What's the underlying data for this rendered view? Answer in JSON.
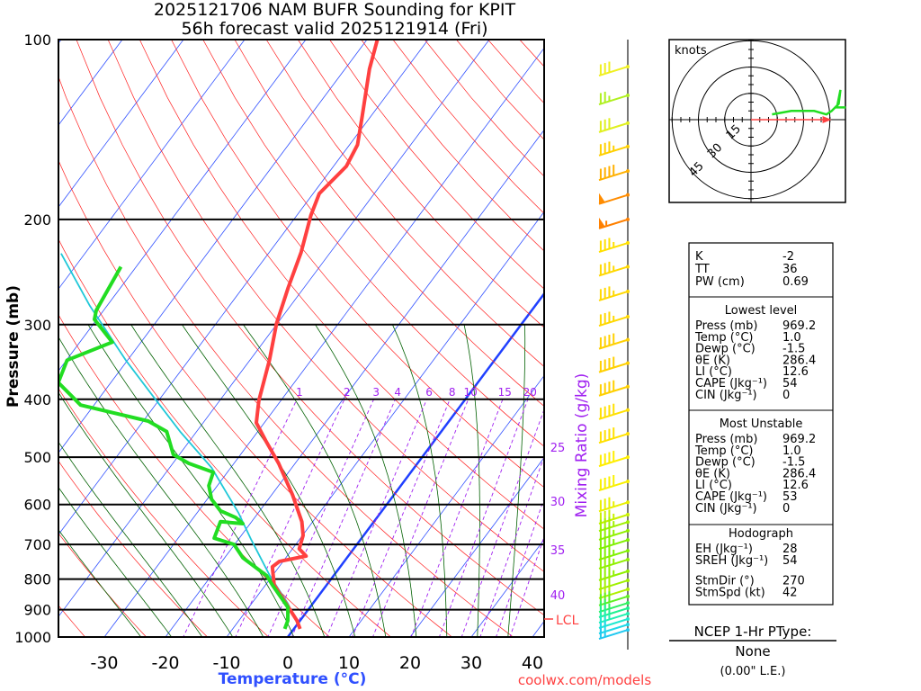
{
  "title": {
    "line1": "2025121706 NAM BUFR Sounding for KPIT",
    "line2": "56h forecast valid 2025121914 (Fri)"
  },
  "chart_data": {
    "type": "line",
    "subtype": "skew-T log-P",
    "xlabel": "Temperature (°C)",
    "ylabel": "Pressure (mb)",
    "right_label": "Mixing Ratio (g/kg)",
    "pressure_ticks": [
      "100",
      "200",
      "300",
      "400",
      "500",
      "600",
      "700",
      "800",
      "900",
      "1000"
    ],
    "temperature_ticks": [
      "-30",
      "-20",
      "-10",
      "0",
      "10",
      "20",
      "30",
      "40"
    ],
    "mixing_ratio_labels": [
      "1",
      "2",
      "3",
      "4",
      "6",
      "8",
      "10",
      "15",
      "20"
    ],
    "mixing_ratio_right_labels": [
      "25",
      "30",
      "35",
      "40"
    ],
    "lcl_label": "LCL",
    "lcl_pressure": 930,
    "ylim": [
      1050,
      100
    ],
    "xlim_at_1000mb": [
      -39,
      42
    ],
    "series": [
      {
        "name": "Temperature",
        "color": "#ff4040",
        "points": [
          [
            969,
            1.0
          ],
          [
            939,
            -0.5
          ],
          [
            818,
            -8.6
          ],
          [
            763,
            -11.1
          ],
          [
            747,
            -10.6
          ],
          [
            732,
            -6.9
          ],
          [
            712,
            -8.9
          ],
          [
            676,
            -9.9
          ],
          [
            641,
            -11.8
          ],
          [
            578,
            -16.6
          ],
          [
            512,
            -22.7
          ],
          [
            469,
            -27.6
          ],
          [
            438,
            -31.3
          ],
          [
            402,
            -33.6
          ],
          [
            344,
            -36.8
          ],
          [
            299,
            -40.1
          ],
          [
            260,
            -42.6
          ],
          [
            227,
            -44.8
          ],
          [
            197,
            -47.7
          ],
          [
            181,
            -49.0
          ],
          [
            163,
            -47.9
          ],
          [
            150,
            -48.7
          ],
          [
            135,
            -51.3
          ],
          [
            112,
            -56.0
          ],
          [
            100,
            -58.3
          ]
        ]
      },
      {
        "name": "Dewpoint",
        "color": "#22dd22",
        "points": [
          [
            969,
            -1.5
          ],
          [
            939,
            -2.0
          ],
          [
            892,
            -3.6
          ],
          [
            818,
            -8.9
          ],
          [
            790,
            -10.9
          ],
          [
            737,
            -17.0
          ],
          [
            700,
            -20.1
          ],
          [
            683,
            -24.1
          ],
          [
            641,
            -25.1
          ],
          [
            646,
            -21.2
          ],
          [
            631,
            -23.1
          ],
          [
            615,
            -26.4
          ],
          [
            588,
            -29.3
          ],
          [
            558,
            -31.4
          ],
          [
            530,
            -32.3
          ],
          [
            512,
            -37.4
          ],
          [
            495,
            -41.0
          ],
          [
            453,
            -44.9
          ],
          [
            435,
            -49.2
          ],
          [
            409,
            -62.2
          ],
          [
            375,
            -68.6
          ],
          [
            344,
            -69.9
          ],
          [
            321,
            -64.7
          ],
          [
            294,
            -70.4
          ],
          [
            284,
            -71.2
          ],
          [
            240,
            -72.5
          ]
        ]
      },
      {
        "name": "Parcel",
        "color": "#20c8d8",
        "points": [
          [
            969,
            1.0
          ],
          [
            877,
            -4.2
          ],
          [
            790,
            -10.4
          ],
          [
            688,
            -17.8
          ],
          [
            620,
            -23.2
          ],
          [
            521,
            -33.1
          ],
          [
            453,
            -42.7
          ],
          [
            395,
            -51.5
          ],
          [
            344,
            -60.3
          ],
          [
            279,
            -72.8
          ],
          [
            228,
            -83.9
          ]
        ]
      }
    ],
    "wind_barbs": [
      {
        "p": 111,
        "spd": 30,
        "color": "#f0f020"
      },
      {
        "p": 124,
        "spd": 25,
        "color": "#b0f020"
      },
      {
        "p": 138,
        "spd": 30,
        "color": "#e0f020"
      },
      {
        "p": 151,
        "spd": 35,
        "color": "#ffd000"
      },
      {
        "p": 166,
        "spd": 40,
        "color": "#ffb000"
      },
      {
        "p": 182,
        "spd": 50,
        "color": "#ff8c00"
      },
      {
        "p": 200,
        "spd": 55,
        "color": "#ff8000"
      },
      {
        "p": 219,
        "spd": 35,
        "color": "#ffe000"
      },
      {
        "p": 240,
        "spd": 35,
        "color": "#ffd800"
      },
      {
        "p": 264,
        "spd": 35,
        "color": "#ffd800"
      },
      {
        "p": 291,
        "spd": 35,
        "color": "#ffd800"
      },
      {
        "p": 318,
        "spd": 40,
        "color": "#ffd000"
      },
      {
        "p": 348,
        "spd": 40,
        "color": "#ffd000"
      },
      {
        "p": 381,
        "spd": 40,
        "color": "#ffd000"
      },
      {
        "p": 417,
        "spd": 40,
        "color": "#ffe000"
      },
      {
        "p": 457,
        "spd": 40,
        "color": "#ffe000"
      },
      {
        "p": 500,
        "spd": 40,
        "color": "#ffee00"
      },
      {
        "p": 549,
        "spd": 40,
        "color": "#f8f000"
      },
      {
        "p": 595,
        "spd": 35,
        "color": "#e8f000"
      },
      {
        "p": 624,
        "spd": 35,
        "color": "#c8f000"
      },
      {
        "p": 642,
        "spd": 35,
        "color": "#a0f000"
      },
      {
        "p": 664,
        "spd": 35,
        "color": "#90f000"
      },
      {
        "p": 688,
        "spd": 35,
        "color": "#80f000"
      },
      {
        "p": 717,
        "spd": 35,
        "color": "#80f000"
      },
      {
        "p": 742,
        "spd": 35,
        "color": "#90f000"
      },
      {
        "p": 776,
        "spd": 35,
        "color": "#90f000"
      },
      {
        "p": 804,
        "spd": 30,
        "color": "#a0f000"
      },
      {
        "p": 832,
        "spd": 30,
        "color": "#b0f000"
      },
      {
        "p": 855,
        "spd": 30,
        "color": "#60f020"
      },
      {
        "p": 877,
        "spd": 25,
        "color": "#30f060"
      },
      {
        "p": 895,
        "spd": 25,
        "color": "#20f090"
      },
      {
        "p": 914,
        "spd": 25,
        "color": "#20f0b0"
      },
      {
        "p": 933,
        "spd": 20,
        "color": "#20e8d0"
      },
      {
        "p": 953,
        "spd": 20,
        "color": "#20d8e8"
      },
      {
        "p": 973,
        "spd": 15,
        "color": "#20c8f0"
      }
    ]
  },
  "hodograph": {
    "units_label": "knots",
    "ring_labels": [
      "15",
      "30",
      "45"
    ],
    "points_uv": [
      [
        12,
        3
      ],
      [
        23,
        5
      ],
      [
        36,
        5
      ],
      [
        43,
        3
      ],
      [
        46,
        5
      ],
      [
        50,
        9
      ],
      [
        51,
        17
      ],
      [
        49,
        7
      ],
      [
        54,
        7
      ]
    ],
    "storm_motion": {
      "dir": 270,
      "spd": 42
    }
  },
  "stats": {
    "top": [
      {
        "label": "K",
        "value": "-2"
      },
      {
        "label": "TT",
        "value": "36"
      },
      {
        "label": "PW (cm)",
        "value": "0.69"
      }
    ],
    "lowest": {
      "title": "Lowest level",
      "rows": [
        {
          "label": "Press (mb)",
          "value": "969.2"
        },
        {
          "label": "Temp (°C)",
          "value": "1.0"
        },
        {
          "label": "Dewp (°C)",
          "value": "-1.5"
        },
        {
          "label": "θE (K)",
          "value": "286.4"
        },
        {
          "label": "LI (°C)",
          "value": "12.6"
        },
        {
          "label": "CAPE (Jkg⁻¹)",
          "value": "54"
        },
        {
          "label": "CIN (Jkg⁻¹)",
          "value": "0"
        }
      ]
    },
    "unstable": {
      "title": "Most Unstable",
      "rows": [
        {
          "label": "Press (mb)",
          "value": "969.2"
        },
        {
          "label": "Temp (°C)",
          "value": "1.0"
        },
        {
          "label": "Dewp (°C)",
          "value": "-1.5"
        },
        {
          "label": "θE (K)",
          "value": "286.4"
        },
        {
          "label": "LI (°C)",
          "value": "12.6"
        },
        {
          "label": "CAPE (Jkg⁻¹)",
          "value": "53"
        },
        {
          "label": "CIN (Jkg⁻¹)",
          "value": "0"
        }
      ]
    },
    "hodo": {
      "title": "Hodograph",
      "rows": [
        {
          "label": "EH (Jkg⁻¹)",
          "value": "28"
        },
        {
          "label": "SREH (Jkg⁻¹)",
          "value": "54"
        },
        {
          "label": "StmDir (°)",
          "value": "270"
        },
        {
          "label": "StmSpd (kt)",
          "value": "42"
        }
      ]
    }
  },
  "ptype": {
    "title": "NCEP 1-Hr PType:",
    "value": "None",
    "amount": "(0.00\" L.E.)"
  },
  "credit": "coolwx.com/models",
  "colors": {
    "temp": "#ff4040",
    "dew": "#22dd22",
    "parcel": "#20c8d8",
    "isotherm": "#3050ff",
    "dry": "#ff2020",
    "moist": "#006000",
    "mix": "#a020f0"
  }
}
